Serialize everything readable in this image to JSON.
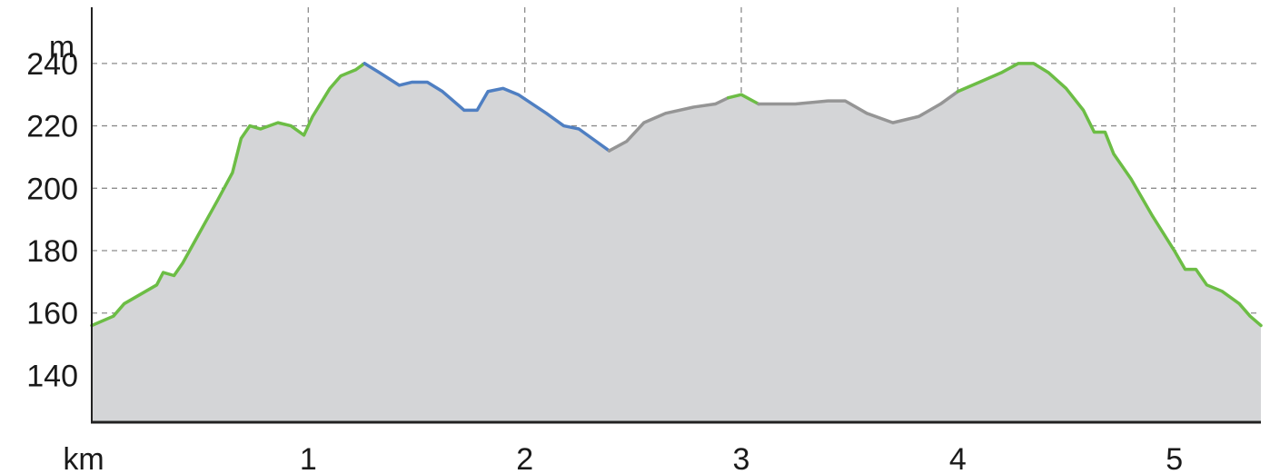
{
  "chart_data": {
    "type": "area",
    "title": "",
    "xlabel": "km",
    "ylabel": "m",
    "xlim": [
      0,
      5.4
    ],
    "ylim": [
      125,
      258
    ],
    "x_ticks": [
      1,
      2,
      3,
      4,
      5
    ],
    "y_ticks": [
      140,
      160,
      180,
      200,
      220,
      240
    ],
    "x_tick_labels": [
      "1",
      "2",
      "3",
      "4",
      "5"
    ],
    "y_tick_labels": [
      "140",
      "160",
      "180",
      "200",
      "220",
      "240"
    ],
    "grid": "dashed",
    "fill_color": "#d4d5d7",
    "series": [
      {
        "color": "#6cbd45",
        "points": [
          [
            0,
            156
          ],
          [
            0.1,
            159
          ],
          [
            0.15,
            163
          ],
          [
            0.2,
            165
          ],
          [
            0.25,
            167
          ],
          [
            0.3,
            169
          ],
          [
            0.33,
            173
          ],
          [
            0.38,
            172
          ],
          [
            0.42,
            176
          ],
          [
            0.5,
            186
          ],
          [
            0.58,
            196
          ],
          [
            0.65,
            205
          ],
          [
            0.69,
            216
          ],
          [
            0.73,
            220
          ],
          [
            0.78,
            219
          ],
          [
            0.86,
            221
          ],
          [
            0.92,
            220
          ],
          [
            0.98,
            217
          ],
          [
            1.02,
            223
          ],
          [
            1.1,
            232
          ],
          [
            1.15,
            236
          ],
          [
            1.22,
            238
          ],
          [
            1.26,
            240
          ]
        ]
      },
      {
        "color": "#4f7fc2",
        "points": [
          [
            1.26,
            240
          ],
          [
            1.33,
            237
          ],
          [
            1.42,
            233
          ],
          [
            1.48,
            234
          ],
          [
            1.55,
            234
          ],
          [
            1.62,
            231
          ],
          [
            1.72,
            225
          ],
          [
            1.78,
            225
          ],
          [
            1.83,
            231
          ],
          [
            1.9,
            232
          ],
          [
            1.97,
            230
          ],
          [
            2.1,
            224
          ],
          [
            2.18,
            220
          ],
          [
            2.25,
            219
          ],
          [
            2.33,
            215
          ],
          [
            2.39,
            212
          ]
        ]
      },
      {
        "color": "#959595",
        "points": [
          [
            2.39,
            212
          ],
          [
            2.47,
            215
          ],
          [
            2.55,
            221
          ],
          [
            2.65,
            224
          ],
          [
            2.78,
            226
          ],
          [
            2.88,
            227
          ],
          [
            2.94,
            229
          ]
        ]
      },
      {
        "color": "#6cbd45",
        "points": [
          [
            2.94,
            229
          ],
          [
            3.0,
            230
          ],
          [
            3.08,
            227
          ]
        ]
      },
      {
        "color": "#959595",
        "points": [
          [
            3.08,
            227
          ],
          [
            3.25,
            227
          ],
          [
            3.4,
            228
          ],
          [
            3.48,
            228
          ],
          [
            3.58,
            224
          ],
          [
            3.7,
            221
          ],
          [
            3.82,
            223
          ],
          [
            3.92,
            227
          ],
          [
            4.0,
            231
          ]
        ]
      },
      {
        "color": "#6cbd45",
        "points": [
          [
            4.0,
            231
          ],
          [
            4.1,
            234
          ],
          [
            4.2,
            237
          ],
          [
            4.28,
            240
          ],
          [
            4.35,
            240
          ],
          [
            4.42,
            237
          ],
          [
            4.5,
            232
          ],
          [
            4.58,
            225
          ],
          [
            4.63,
            218
          ],
          [
            4.68,
            218
          ],
          [
            4.72,
            211
          ],
          [
            4.8,
            203
          ],
          [
            4.9,
            191
          ],
          [
            5.0,
            180
          ],
          [
            5.05,
            174
          ],
          [
            5.1,
            174
          ],
          [
            5.15,
            169
          ],
          [
            5.22,
            167
          ],
          [
            5.3,
            163
          ],
          [
            5.35,
            159
          ],
          [
            5.4,
            156
          ]
        ]
      }
    ]
  }
}
